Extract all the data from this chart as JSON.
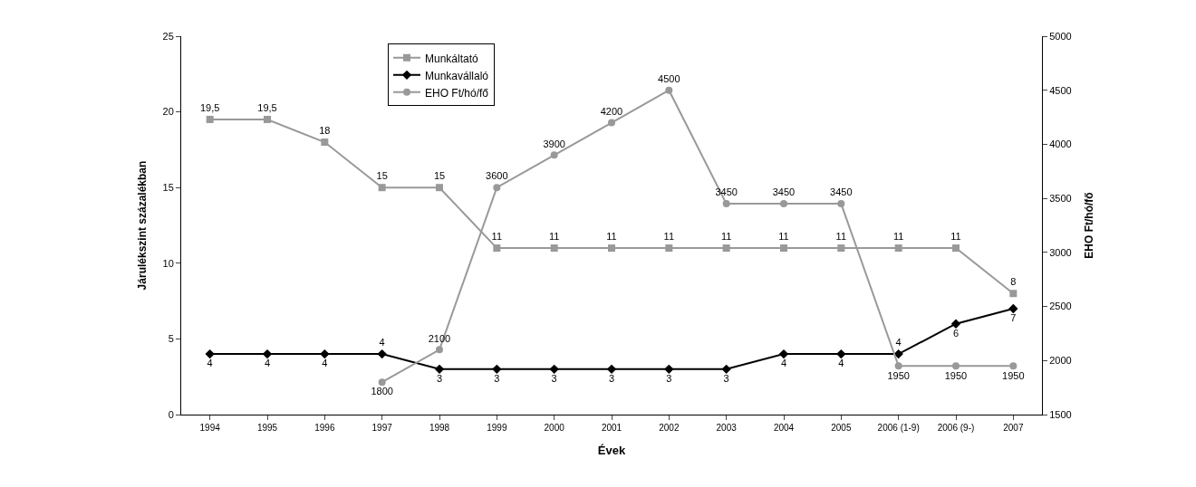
{
  "chart_data": {
    "type": "line",
    "xlabel": "Évek",
    "ylabel": "Járulékszint százalékban",
    "y2label": "EHO Ft/hó/fő",
    "categories": [
      "1994",
      "1995",
      "1996",
      "1997",
      "1998",
      "1999",
      "2000",
      "2001",
      "2002",
      "2003",
      "2004",
      "2005",
      "2006 (1-9)",
      "2006 (9-)",
      "2007"
    ],
    "series": [
      {
        "name": "Munkáltató",
        "color": "#999999",
        "marker": "square",
        "values": [
          19.5,
          19.5,
          18,
          15,
          15,
          11,
          11,
          11,
          11,
          11,
          11,
          11,
          11,
          11,
          8
        ],
        "value_labels": [
          "19,5",
          "19,5",
          "18",
          "15",
          "15",
          "11",
          "11",
          "11",
          "11",
          "11",
          "11",
          "11",
          "11",
          "11",
          "8"
        ]
      },
      {
        "name": "Munkavállaló",
        "color": "#000000",
        "marker": "diamond",
        "values": [
          4,
          4,
          4,
          4,
          3,
          3,
          3,
          3,
          3,
          3,
          4,
          4,
          4,
          6,
          7
        ],
        "value_labels": [
          "4",
          "4",
          "4",
          "4",
          "3",
          "3",
          "3",
          "3",
          "3",
          "3",
          "4",
          "4",
          "4",
          "6",
          "7"
        ]
      },
      {
        "name": "EHO Ft/hó/fő",
        "color": "#999999",
        "marker": "circle",
        "axis": "y2",
        "values": [
          null,
          null,
          null,
          1800,
          2100,
          3600,
          3900,
          4200,
          4500,
          3450,
          3450,
          3450,
          1950,
          1950,
          1950
        ],
        "value_labels": [
          null,
          null,
          null,
          "1800",
          "2100",
          "3600",
          "3900",
          "4200",
          "4500",
          "3450",
          "3450",
          "3450",
          "1950",
          "1950",
          "1950"
        ]
      }
    ],
    "ylim": [
      0,
      25
    ],
    "yticks": [
      0,
      5,
      10,
      15,
      20,
      25
    ],
    "y2lim": [
      1500,
      5000
    ],
    "y2ticks": [
      1500,
      2000,
      2500,
      3000,
      3500,
      4000,
      4500,
      5000
    ],
    "legend": "top",
    "line_style": "solid"
  }
}
